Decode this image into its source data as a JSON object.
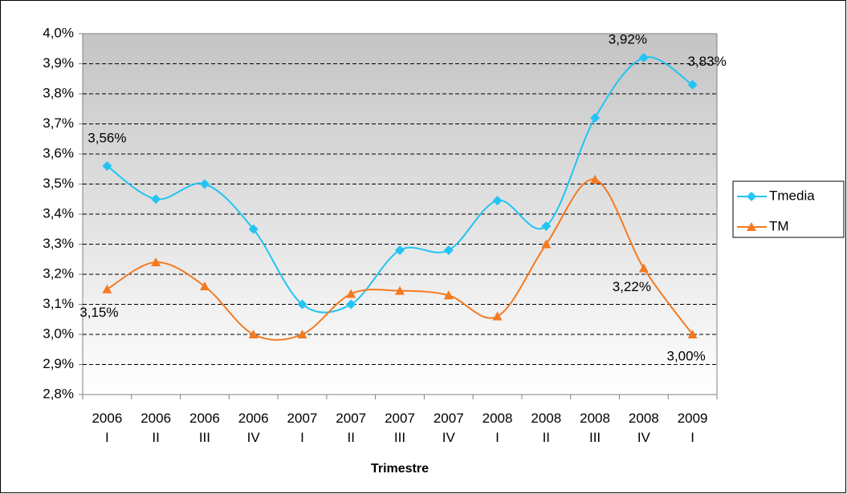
{
  "chart_data": {
    "type": "line",
    "x_label": "Trimestre",
    "categories": [
      "2006\nI",
      "2006\nII",
      "2006\nIII",
      "2006\nIV",
      "2007\nI",
      "2007\nII",
      "2007\nIII",
      "2007\nIV",
      "2008\nI",
      "2008\nII",
      "2008\nIII",
      "2008\nIV",
      "2009\nI"
    ],
    "series": [
      {
        "name": "Tmedia",
        "color": "#22c4f4",
        "marker": "diamond",
        "values": [
          3.56,
          3.45,
          3.5,
          3.35,
          3.1,
          3.1,
          3.28,
          3.28,
          3.445,
          3.36,
          3.72,
          3.92,
          3.83
        ],
        "value_labels": [
          "3,56%",
          null,
          null,
          null,
          null,
          null,
          null,
          null,
          null,
          null,
          null,
          "3,92%",
          "3,83%"
        ]
      },
      {
        "name": "TM",
        "color": "#f47a20",
        "marker": "triangle",
        "values": [
          3.15,
          3.24,
          3.16,
          3.0,
          3.0,
          3.135,
          3.145,
          3.13,
          3.06,
          3.3,
          3.515,
          3.22,
          3.0
        ],
        "value_labels": [
          "3,15%",
          null,
          null,
          null,
          null,
          null,
          null,
          null,
          null,
          null,
          null,
          "3,22%",
          "3,00%"
        ]
      }
    ],
    "ylim": [
      2.8,
      4.0
    ],
    "yticks": [
      {
        "value": 2.8,
        "label": "2,8%"
      },
      {
        "value": 2.9,
        "label": "2,9%"
      },
      {
        "value": 3.0,
        "label": "3,0%"
      },
      {
        "value": 3.1,
        "label": "3,1%"
      },
      {
        "value": 3.2,
        "label": "3,2%"
      },
      {
        "value": 3.3,
        "label": "3,3%"
      },
      {
        "value": 3.4,
        "label": "3,4%"
      },
      {
        "value": 3.5,
        "label": "3,5%"
      },
      {
        "value": 3.6,
        "label": "3,6%"
      },
      {
        "value": 3.7,
        "label": "3,7%"
      },
      {
        "value": 3.8,
        "label": "3,8%"
      },
      {
        "value": 3.9,
        "label": "3,9%"
      },
      {
        "value": 4.0,
        "label": "4,0%"
      }
    ],
    "grid": true,
    "legend": "right",
    "smooth": true
  }
}
